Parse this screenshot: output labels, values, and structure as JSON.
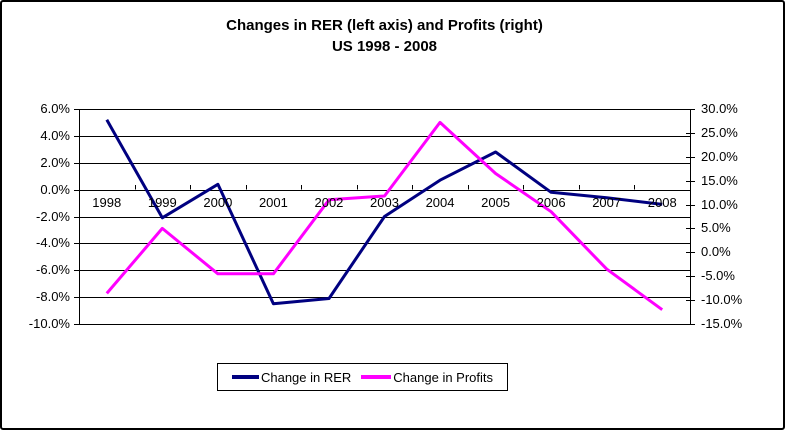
{
  "chart_data": {
    "type": "line",
    "title": "Changes in RER (left axis) and Profits (right)",
    "subtitle": "US 1998 - 2008",
    "categories": [
      "1998",
      "1999",
      "2000",
      "2001",
      "2002",
      "2003",
      "2004",
      "2005",
      "2006",
      "2007",
      "2008"
    ],
    "series": [
      {
        "name": "Change in RER",
        "axis": "left",
        "color": "#000080",
        "values": [
          5.2,
          -2.1,
          0.4,
          -8.5,
          -8.1,
          -2.0,
          0.7,
          2.8,
          -0.2,
          -0.6,
          -1.1
        ]
      },
      {
        "name": "Change in Profits",
        "axis": "right",
        "color": "#FF00FF",
        "values": [
          -8.6,
          5.0,
          -4.5,
          -4.5,
          11.0,
          11.8,
          27.2,
          16.5,
          8.5,
          -3.5,
          -12.0
        ]
      }
    ],
    "left_axis": {
      "min": -10,
      "max": 6,
      "step": 2,
      "tick_labels": [
        "6.0%",
        "4.0%",
        "2.0%",
        "0.0%",
        "-2.0%",
        "-4.0%",
        "-6.0%",
        "-8.0%",
        "-10.0%"
      ]
    },
    "right_axis": {
      "min": -15,
      "max": 30,
      "step": 5,
      "tick_labels": [
        "30.0%",
        "25.0%",
        "20.0%",
        "15.0%",
        "10.0%",
        "5.0%",
        "0.0%",
        "-5.0%",
        "-10.0%",
        "-15.0%"
      ]
    },
    "grid": true,
    "legend_position": "bottom"
  },
  "colors": {
    "rer_line": "#000080",
    "profits_line": "#FF00FF",
    "axis_and_grid": "#000000",
    "background": "#FFFFFF"
  }
}
